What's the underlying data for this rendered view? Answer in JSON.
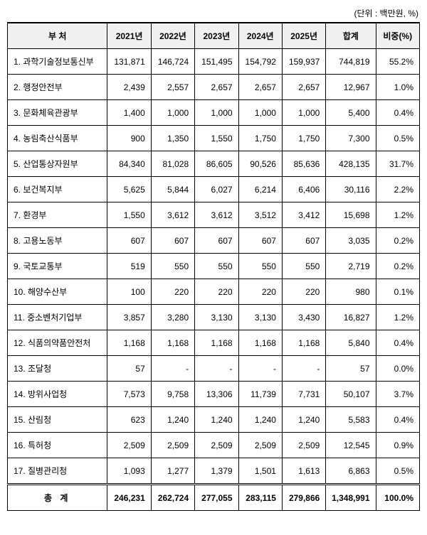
{
  "unit_label": "(단위 : 백만원, %)",
  "table": {
    "columns": [
      "부 처",
      "2021년",
      "2022년",
      "2023년",
      "2024년",
      "2025년",
      "합계",
      "비중(%)"
    ],
    "rows": [
      {
        "dept": "1. 과학기술정보통신부",
        "y2021": "131,871",
        "y2022": "146,724",
        "y2023": "151,495",
        "y2024": "154,792",
        "y2025": "159,937",
        "total": "744,819",
        "pct": "55.2%"
      },
      {
        "dept": "2. 행정안전부",
        "y2021": "2,439",
        "y2022": "2,557",
        "y2023": "2,657",
        "y2024": "2,657",
        "y2025": "2,657",
        "total": "12,967",
        "pct": "1.0%"
      },
      {
        "dept": "3. 문화체육관광부",
        "y2021": "1,400",
        "y2022": "1,000",
        "y2023": "1,000",
        "y2024": "1,000",
        "y2025": "1,000",
        "total": "5,400",
        "pct": "0.4%"
      },
      {
        "dept": "4. 농림축산식품부",
        "y2021": "900",
        "y2022": "1,350",
        "y2023": "1,550",
        "y2024": "1,750",
        "y2025": "1,750",
        "total": "7,300",
        "pct": "0.5%"
      },
      {
        "dept": "5. 산업통상자원부",
        "y2021": "84,340",
        "y2022": "81,028",
        "y2023": "86,605",
        "y2024": "90,526",
        "y2025": "85,636",
        "total": "428,135",
        "pct": "31.7%"
      },
      {
        "dept": "6. 보건복지부",
        "y2021": "5,625",
        "y2022": "5,844",
        "y2023": "6,027",
        "y2024": "6,214",
        "y2025": "6,406",
        "total": "30,116",
        "pct": "2.2%"
      },
      {
        "dept": "7. 환경부",
        "y2021": "1,550",
        "y2022": "3,612",
        "y2023": "3,612",
        "y2024": "3,512",
        "y2025": "3,412",
        "total": "15,698",
        "pct": "1.2%"
      },
      {
        "dept": "8. 고용노동부",
        "y2021": "607",
        "y2022": "607",
        "y2023": "607",
        "y2024": "607",
        "y2025": "607",
        "total": "3,035",
        "pct": "0.2%"
      },
      {
        "dept": "9. 국토교통부",
        "y2021": "519",
        "y2022": "550",
        "y2023": "550",
        "y2024": "550",
        "y2025": "550",
        "total": "2,719",
        "pct": "0.2%"
      },
      {
        "dept": "10. 해양수산부",
        "y2021": "100",
        "y2022": "220",
        "y2023": "220",
        "y2024": "220",
        "y2025": "220",
        "total": "980",
        "pct": "0.1%"
      },
      {
        "dept": "11. 중소벤처기업부",
        "y2021": "3,857",
        "y2022": "3,280",
        "y2023": "3,130",
        "y2024": "3,130",
        "y2025": "3,430",
        "total": "16,827",
        "pct": "1.2%"
      },
      {
        "dept": "12. 식품의약품안전처",
        "y2021": "1,168",
        "y2022": "1,168",
        "y2023": "1,168",
        "y2024": "1,168",
        "y2025": "1,168",
        "total": "5,840",
        "pct": "0.4%"
      },
      {
        "dept": "13. 조달청",
        "y2021": "57",
        "y2022": "-",
        "y2023": "-",
        "y2024": "-",
        "y2025": "-",
        "total": "57",
        "pct": "0.0%"
      },
      {
        "dept": "14. 방위사업청",
        "y2021": "7,573",
        "y2022": "9,758",
        "y2023": "13,306",
        "y2024": "11,739",
        "y2025": "7,731",
        "total": "50,107",
        "pct": "3.7%"
      },
      {
        "dept": "15. 산림청",
        "y2021": "623",
        "y2022": "1,240",
        "y2023": "1,240",
        "y2024": "1,240",
        "y2025": "1,240",
        "total": "5,583",
        "pct": "0.4%"
      },
      {
        "dept": "16. 특허청",
        "y2021": "2,509",
        "y2022": "2,509",
        "y2023": "2,509",
        "y2024": "2,509",
        "y2025": "2,509",
        "total": "12,545",
        "pct": "0.9%"
      },
      {
        "dept": "17. 질병관리청",
        "y2021": "1,093",
        "y2022": "1,277",
        "y2023": "1,379",
        "y2024": "1,501",
        "y2025": "1,613",
        "total": "6,863",
        "pct": "0.5%"
      }
    ],
    "footer": {
      "label": "총 계",
      "y2021": "246,231",
      "y2022": "262,724",
      "y2023": "277,055",
      "y2024": "283,115",
      "y2025": "279,866",
      "total": "1,348,991",
      "pct": "100.0%"
    }
  }
}
